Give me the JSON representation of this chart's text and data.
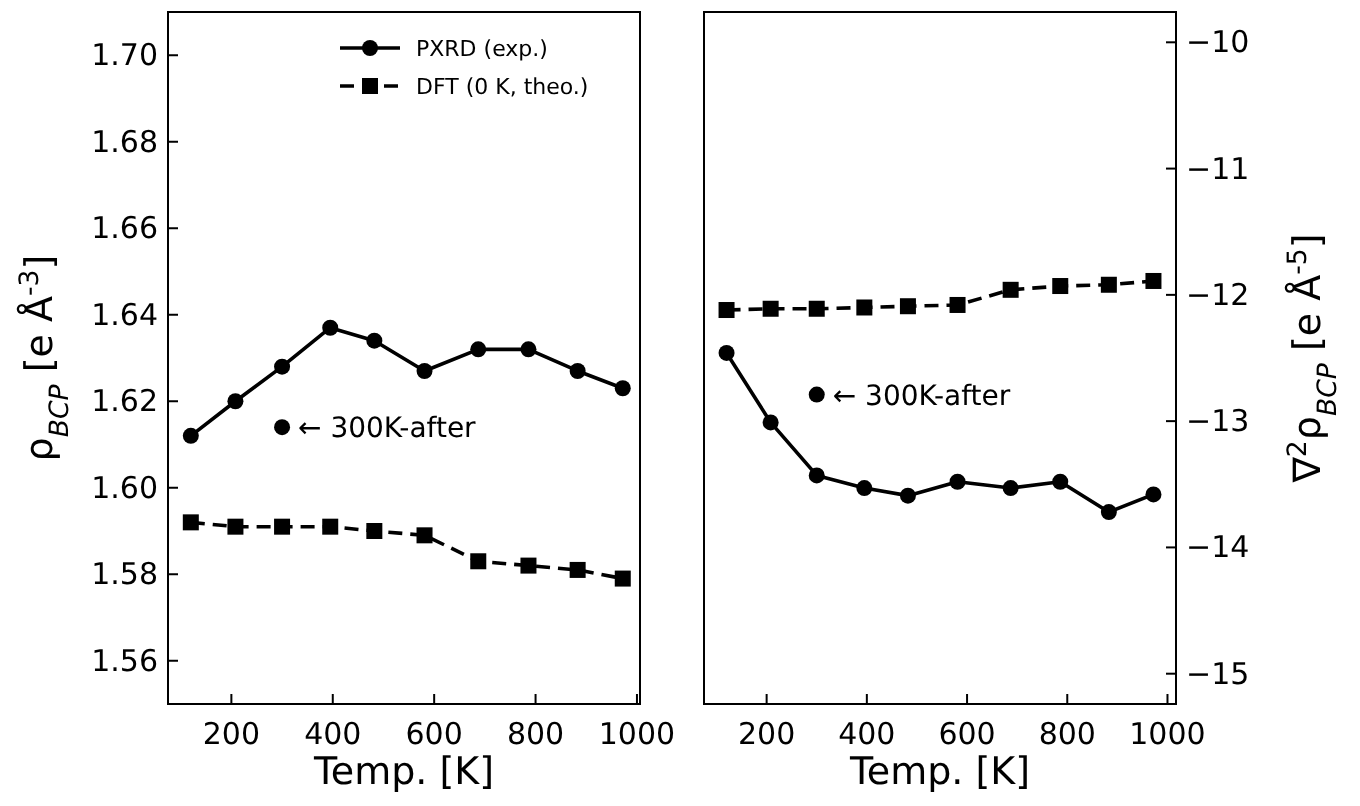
{
  "chart_data": [
    {
      "type": "line",
      "xlabel": "Temp. [K]",
      "ylabel": "ρ$_{BCP}$ [e Å$^{-3}$]",
      "xlim": [
        75,
        1006
      ],
      "xticks": [
        200,
        400,
        600,
        800,
        1000
      ],
      "ylim": [
        1.55,
        1.71
      ],
      "yticks": [
        1.56,
        1.58,
        {
          "value": 1.6,
          "label": "1.60"
        },
        1.62,
        1.64,
        1.66,
        1.68,
        {
          "value": 1.7,
          "label": "1.70"
        }
      ],
      "grid": false,
      "legend": "top right",
      "series": [
        {
          "name": "PXRD (exp.)",
          "color": "#000000",
          "marker": "circle",
          "line_style": "solid",
          "x": [
            120,
            208,
            300,
            395,
            482,
            581,
            687,
            786,
            883,
            972
          ],
          "values": [
            1.612,
            1.62,
            1.628,
            1.637,
            1.634,
            1.627,
            1.632,
            1.632,
            1.627,
            1.623
          ]
        },
        {
          "name": "DFT (0 K, theo.)",
          "color": "#000000",
          "marker": "square",
          "line_style": "dashed",
          "x": [
            120,
            208,
            300,
            395,
            482,
            581,
            687,
            786,
            883,
            972
          ],
          "values": [
            1.592,
            1.591,
            1.591,
            1.591,
            1.59,
            1.589,
            1.583,
            1.582,
            1.581,
            1.579
          ]
        },
        {
          "type": "scatter",
          "color": "#000000",
          "marker": "circle",
          "x": [
            300
          ],
          "values": [
            1.614
          ]
        }
      ],
      "annotations": [
        {
          "text": "← 300K-after",
          "x": 300,
          "y": 1.614
        }
      ]
    },
    {
      "type": "line",
      "xlabel": "Temp. [K]",
      "ylabel": "∇$^{2}$ρ$_{BCP}$ [e Å$^{-5}$]",
      "xlim": [
        75,
        1017
      ],
      "xticks": [
        200,
        400,
        600,
        800,
        1000
      ],
      "ylim": [
        -15.24,
        -9.76
      ],
      "yticks": [
        {
          "value": -15,
          "label": "−15"
        },
        {
          "value": -14,
          "label": "−14"
        },
        {
          "value": -13,
          "label": "−13"
        },
        {
          "value": -12,
          "label": "−12"
        },
        {
          "value": -11,
          "label": "−11"
        },
        {
          "value": -10,
          "label": "−10"
        }
      ],
      "grid": false,
      "legend": false,
      "series": [
        {
          "color": "#000000",
          "marker": "circle",
          "line_style": "solid",
          "x": [
            120,
            208,
            300,
            395,
            482,
            581,
            687,
            786,
            883,
            972
          ],
          "values": [
            -12.46,
            -13.01,
            -13.43,
            -13.53,
            -13.59,
            -13.48,
            -13.53,
            -13.48,
            -13.72,
            -13.58
          ]
        },
        {
          "color": "#000000",
          "marker": "square",
          "line_style": "dashed",
          "x": [
            120,
            208,
            300,
            395,
            482,
            581,
            687,
            786,
            883,
            972
          ],
          "values": [
            -12.12,
            -12.11,
            -12.11,
            -12.1,
            -12.09,
            -12.08,
            -11.96,
            -11.93,
            -11.92,
            -11.89
          ]
        },
        {
          "type": "scatter",
          "color": "#000000",
          "marker": "circle",
          "x": [
            300
          ],
          "values": [
            -12.79
          ]
        }
      ],
      "annotations": [
        {
          "text": "← 300K-after",
          "x": 300,
          "y": -12.79
        }
      ]
    }
  ]
}
